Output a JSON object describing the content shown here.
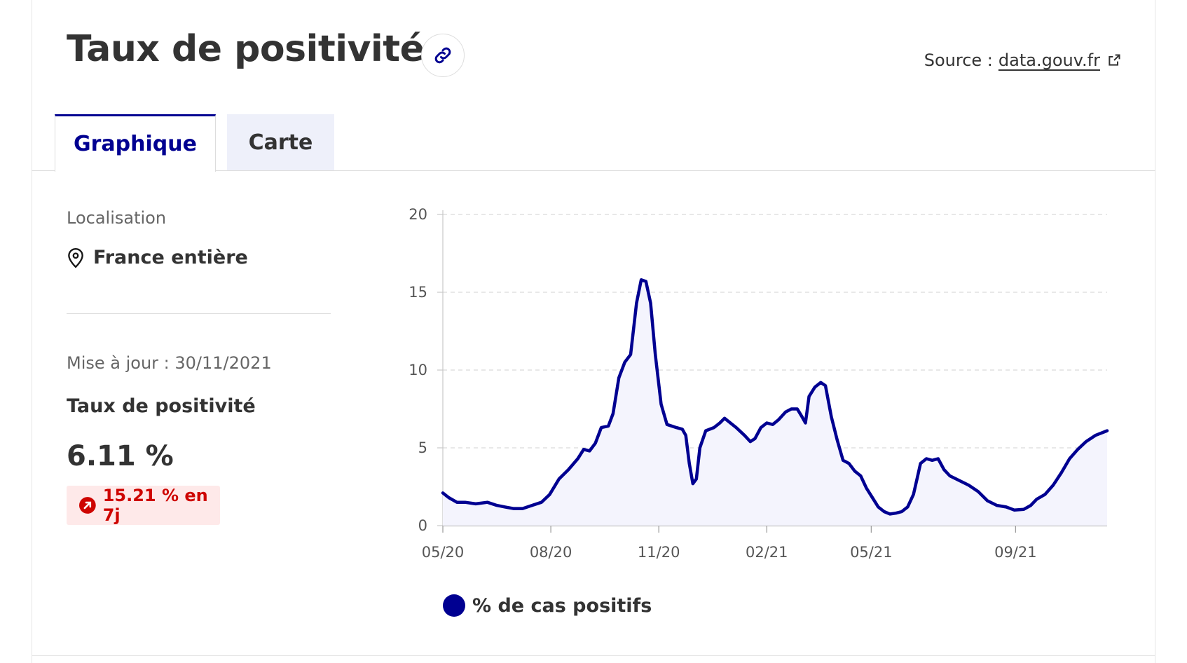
{
  "header": {
    "title": "Taux de positivité",
    "source_label": "Source :",
    "source_link": "data.gouv.fr"
  },
  "tabs": [
    {
      "label": "Graphique",
      "active": true
    },
    {
      "label": "Carte",
      "active": false
    }
  ],
  "sidebar": {
    "location_label": "Localisation",
    "location_value": "France entière",
    "update_text": "Mise à jour : 30/11/2021",
    "indicator_label": "Taux de positivité",
    "indicator_value": "6.11 %",
    "trend_text": "15.21 % en 7j",
    "trend_color": "#ce0500"
  },
  "colors": {
    "accent": "#000091",
    "area_fill": "#f4f4fd",
    "trend_bg": "#fee9e9"
  },
  "icons": {
    "link": "link-icon",
    "external": "external-link-icon",
    "location": "map-pin-icon",
    "trend": "arrow-up-right-icon"
  },
  "chart_data": {
    "type": "area",
    "title": "",
    "xlabel": "",
    "ylabel": "",
    "ylim": [
      0,
      20
    ],
    "yticks": [
      0,
      5,
      10,
      15,
      20
    ],
    "xlim": [
      "2020-05-13",
      "2021-11-30"
    ],
    "xticks": [
      {
        "date": "2020-05-13",
        "label": "05/20"
      },
      {
        "date": "2020-08-13",
        "label": "08/20"
      },
      {
        "date": "2020-11-13",
        "label": "11/20"
      },
      {
        "date": "2021-02-13",
        "label": "02/21"
      },
      {
        "date": "2021-05-13",
        "label": "05/21"
      },
      {
        "date": "2021-09-13",
        "label": "09/21"
      }
    ],
    "grid": true,
    "legend": "bottom-left",
    "series": [
      {
        "name": "% de cas positifs",
        "color": "#000091",
        "points": [
          [
            "2020-05-13",
            2.1
          ],
          [
            "2020-05-18",
            1.8
          ],
          [
            "2020-05-25",
            1.5
          ],
          [
            "2020-06-01",
            1.5
          ],
          [
            "2020-06-10",
            1.4
          ],
          [
            "2020-06-20",
            1.5
          ],
          [
            "2020-06-28",
            1.3
          ],
          [
            "2020-07-05",
            1.2
          ],
          [
            "2020-07-12",
            1.1
          ],
          [
            "2020-07-20",
            1.1
          ],
          [
            "2020-07-28",
            1.3
          ],
          [
            "2020-08-05",
            1.5
          ],
          [
            "2020-08-12",
            2.0
          ],
          [
            "2020-08-20",
            3.0
          ],
          [
            "2020-08-28",
            3.6
          ],
          [
            "2020-09-05",
            4.3
          ],
          [
            "2020-09-10",
            4.9
          ],
          [
            "2020-09-15",
            4.8
          ],
          [
            "2020-09-20",
            5.3
          ],
          [
            "2020-09-25",
            6.3
          ],
          [
            "2020-10-01",
            6.4
          ],
          [
            "2020-10-05",
            7.2
          ],
          [
            "2020-10-10",
            9.5
          ],
          [
            "2020-10-15",
            10.5
          ],
          [
            "2020-10-20",
            11.0
          ],
          [
            "2020-10-25",
            14.3
          ],
          [
            "2020-10-29",
            15.8
          ],
          [
            "2020-11-02",
            15.7
          ],
          [
            "2020-11-06",
            14.3
          ],
          [
            "2020-11-10",
            11.0
          ],
          [
            "2020-11-15",
            7.8
          ],
          [
            "2020-11-20",
            6.5
          ],
          [
            "2020-11-28",
            6.3
          ],
          [
            "2020-12-03",
            6.2
          ],
          [
            "2020-12-06",
            5.8
          ],
          [
            "2020-12-09",
            4.0
          ],
          [
            "2020-12-12",
            2.7
          ],
          [
            "2020-12-15",
            3.0
          ],
          [
            "2020-12-18",
            5.0
          ],
          [
            "2020-12-23",
            6.1
          ],
          [
            "2020-12-30",
            6.3
          ],
          [
            "2021-01-04",
            6.6
          ],
          [
            "2021-01-08",
            6.9
          ],
          [
            "2021-01-13",
            6.6
          ],
          [
            "2021-01-18",
            6.3
          ],
          [
            "2021-01-25",
            5.8
          ],
          [
            "2021-01-30",
            5.4
          ],
          [
            "2021-02-03",
            5.6
          ],
          [
            "2021-02-08",
            6.3
          ],
          [
            "2021-02-13",
            6.6
          ],
          [
            "2021-02-18",
            6.5
          ],
          [
            "2021-02-23",
            6.8
          ],
          [
            "2021-03-01",
            7.3
          ],
          [
            "2021-03-06",
            7.5
          ],
          [
            "2021-03-11",
            7.5
          ],
          [
            "2021-03-15",
            7.0
          ],
          [
            "2021-03-18",
            6.6
          ],
          [
            "2021-03-21",
            8.3
          ],
          [
            "2021-03-26",
            8.9
          ],
          [
            "2021-03-31",
            9.2
          ],
          [
            "2021-04-04",
            9.0
          ],
          [
            "2021-04-09",
            7.0
          ],
          [
            "2021-04-14",
            5.5
          ],
          [
            "2021-04-19",
            4.2
          ],
          [
            "2021-04-24",
            4.0
          ],
          [
            "2021-04-29",
            3.5
          ],
          [
            "2021-05-04",
            3.2
          ],
          [
            "2021-05-09",
            2.4
          ],
          [
            "2021-05-14",
            1.8
          ],
          [
            "2021-05-19",
            1.2
          ],
          [
            "2021-05-24",
            0.9
          ],
          [
            "2021-05-29",
            0.75
          ],
          [
            "2021-06-03",
            0.8
          ],
          [
            "2021-06-08",
            0.9
          ],
          [
            "2021-06-13",
            1.2
          ],
          [
            "2021-06-18",
            2.0
          ],
          [
            "2021-06-21",
            3.0
          ],
          [
            "2021-06-24",
            4.0
          ],
          [
            "2021-06-29",
            4.3
          ],
          [
            "2021-07-04",
            4.2
          ],
          [
            "2021-07-09",
            4.3
          ],
          [
            "2021-07-14",
            3.6
          ],
          [
            "2021-07-19",
            3.2
          ],
          [
            "2021-07-27",
            2.9
          ],
          [
            "2021-08-04",
            2.6
          ],
          [
            "2021-08-12",
            2.2
          ],
          [
            "2021-08-20",
            1.6
          ],
          [
            "2021-08-28",
            1.3
          ],
          [
            "2021-09-05",
            1.2
          ],
          [
            "2021-09-12",
            1.0
          ],
          [
            "2021-09-20",
            1.05
          ],
          [
            "2021-09-26",
            1.3
          ],
          [
            "2021-10-01",
            1.7
          ],
          [
            "2021-10-08",
            2.0
          ],
          [
            "2021-10-15",
            2.6
          ],
          [
            "2021-10-22",
            3.4
          ],
          [
            "2021-10-29",
            4.3
          ],
          [
            "2021-11-05",
            4.9
          ],
          [
            "2021-11-12",
            5.4
          ],
          [
            "2021-11-20",
            5.8
          ],
          [
            "2021-11-30",
            6.1
          ]
        ]
      }
    ]
  }
}
